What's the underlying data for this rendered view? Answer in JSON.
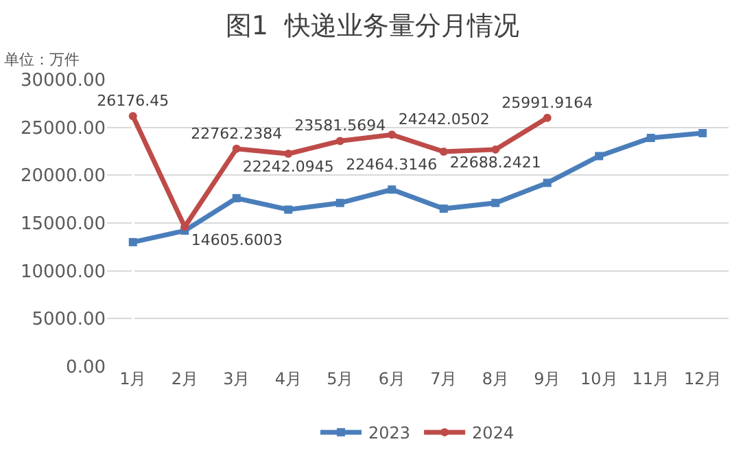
{
  "chart_data": {
    "type": "line",
    "title": "图1  快递业务量分月情况",
    "annotations": [
      "单位：万件"
    ],
    "categories": [
      "1月",
      "2月",
      "3月",
      "4月",
      "5月",
      "6月",
      "7月",
      "8月",
      "9月",
      "10月",
      "11月",
      "12月"
    ],
    "series": [
      {
        "name": "2023",
        "color": "#4a7ebb",
        "marker": "square",
        "values": [
          13000,
          14200,
          17600,
          16400,
          17100,
          18500,
          16500,
          17100,
          19200,
          22000,
          23900,
          24400
        ]
      },
      {
        "name": "2024",
        "color": "#be4b48",
        "marker": "circle",
        "data_labels": true,
        "values": [
          26176.45,
          14605.6003,
          22762.2384,
          22242.0945,
          23581.5694,
          24242.0502,
          22464.3146,
          22688.2421,
          25991.9164,
          null,
          null,
          null
        ]
      }
    ],
    "ylim": [
      0,
      30000
    ],
    "yticks": [
      {
        "value": 0,
        "label": "0.00"
      },
      {
        "value": 5000,
        "label": "5000.00"
      },
      {
        "value": 10000,
        "label": "10000.00"
      },
      {
        "value": 15000,
        "label": "15000.00"
      },
      {
        "value": 20000,
        "label": "20000.00"
      },
      {
        "value": 25000,
        "label": "25000.00"
      },
      {
        "value": 30000,
        "label": "30000.00"
      }
    ],
    "grid": "y",
    "legend": "bottom",
    "line_style": "solid"
  }
}
